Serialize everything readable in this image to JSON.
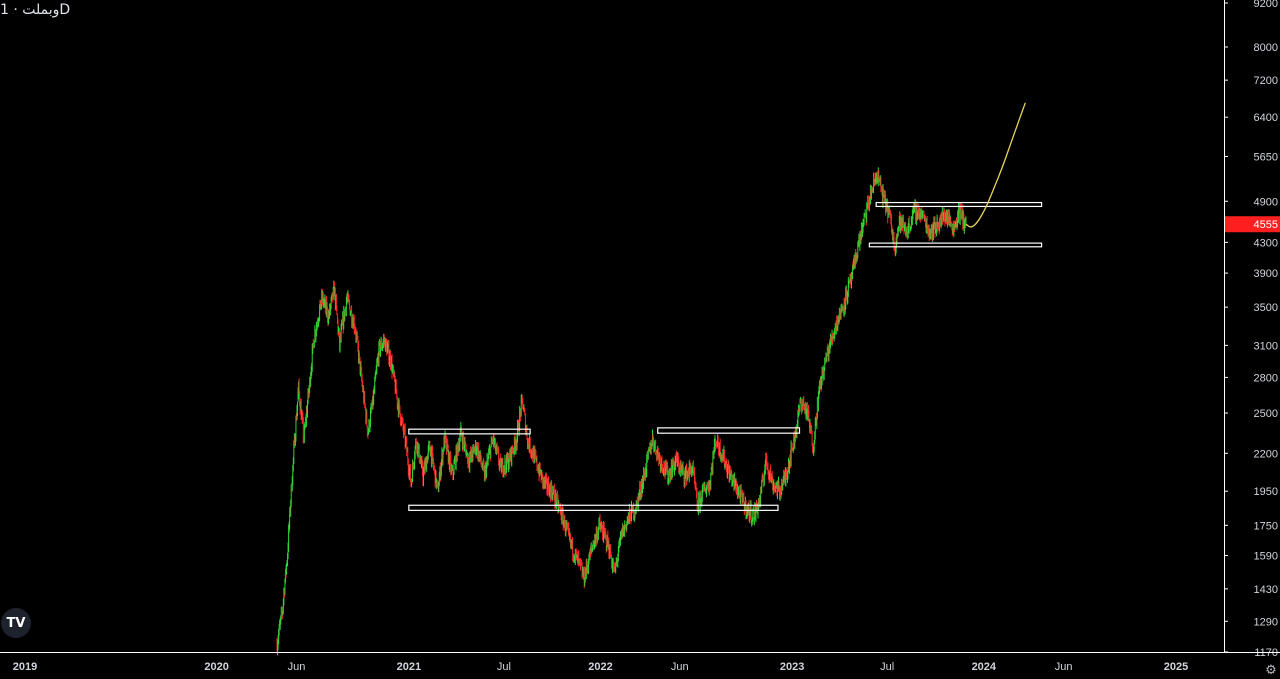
{
  "title": "وبملت · 1D",
  "logo_text": "TV",
  "settings_icon": "gear-icon",
  "chart_data": {
    "type": "candlestick",
    "symbol": "وبملت",
    "interval": "1D",
    "y_scale": "log",
    "ylim": [
      1170,
      9200
    ],
    "y_ticks": [
      1170,
      1290,
      1430,
      1590,
      1750,
      1950,
      2200,
      2500,
      2800,
      3100,
      3500,
      3900,
      4300,
      4900,
      5650,
      6400,
      7200,
      8000,
      9200
    ],
    "y_tick_labels": [
      "1170",
      "1290",
      "1430",
      "1590",
      "1750",
      "1950",
      "2200",
      "2500",
      "2800",
      "3100",
      "3500",
      "3900",
      "4300",
      "4900",
      "5650",
      "6400",
      "7200",
      "8000",
      "9200"
    ],
    "x_ticks": [
      {
        "label": "2019",
        "date": "2019-01-01",
        "bold": true
      },
      {
        "label": "2020",
        "date": "2020-01-01",
        "bold": true
      },
      {
        "label": "Jun",
        "date": "2020-06-01",
        "bold": false
      },
      {
        "label": "2021",
        "date": "2021-01-01",
        "bold": true
      },
      {
        "label": "Jul",
        "date": "2021-07-01",
        "bold": false
      },
      {
        "label": "2022",
        "date": "2022-01-01",
        "bold": true
      },
      {
        "label": "Jun",
        "date": "2022-06-01",
        "bold": false
      },
      {
        "label": "2023",
        "date": "2023-01-01",
        "bold": true
      },
      {
        "label": "Jul",
        "date": "2023-07-01",
        "bold": false
      },
      {
        "label": "2024",
        "date": "2024-01-01",
        "bold": true
      },
      {
        "label": "Jun",
        "date": "2024-06-01",
        "bold": false
      },
      {
        "label": "2025",
        "date": "2025-01-01",
        "bold": true
      }
    ],
    "last_price": 4555,
    "last_price_label": "4555",
    "colors": {
      "up": "#33d633",
      "down": "#ff2a2a",
      "last_price_bg": "#ff1f1f",
      "projection": "#e8d35a",
      "zones": "#ffffff",
      "background": "#000000",
      "text": "#d1d4dc"
    },
    "price_path": [
      [
        "2020-04-25",
        1200
      ],
      [
        "2020-05-05",
        1330
      ],
      [
        "2020-05-15",
        1600
      ],
      [
        "2020-05-25",
        2100
      ],
      [
        "2020-06-05",
        2700
      ],
      [
        "2020-06-15",
        2300
      ],
      [
        "2020-06-25",
        2700
      ],
      [
        "2020-07-05",
        3200
      ],
      [
        "2020-07-20",
        3600
      ],
      [
        "2020-08-01",
        3400
      ],
      [
        "2020-08-12",
        3700
      ],
      [
        "2020-08-22",
        3100
      ],
      [
        "2020-09-05",
        3600
      ],
      [
        "2020-09-20",
        3300
      ],
      [
        "2020-10-05",
        2700
      ],
      [
        "2020-10-15",
        2350
      ],
      [
        "2020-10-25",
        2600
      ],
      [
        "2020-11-05",
        3050
      ],
      [
        "2020-11-15",
        3150
      ],
      [
        "2020-11-28",
        2950
      ],
      [
        "2020-12-10",
        2600
      ],
      [
        "2020-12-25",
        2300
      ],
      [
        "2021-01-05",
        2000
      ],
      [
        "2021-01-15",
        2300
      ],
      [
        "2021-01-28",
        2050
      ],
      [
        "2021-02-10",
        2250
      ],
      [
        "2021-02-25",
        1950
      ],
      [
        "2021-03-10",
        2300
      ],
      [
        "2021-03-25",
        2050
      ],
      [
        "2021-04-10",
        2350
      ],
      [
        "2021-04-25",
        2150
      ],
      [
        "2021-05-10",
        2250
      ],
      [
        "2021-05-25",
        2050
      ],
      [
        "2021-06-10",
        2300
      ],
      [
        "2021-06-25",
        2100
      ],
      [
        "2021-07-10",
        2150
      ],
      [
        "2021-07-25",
        2300
      ],
      [
        "2021-08-05",
        2600
      ],
      [
        "2021-08-15",
        2300
      ],
      [
        "2021-08-30",
        2150
      ],
      [
        "2021-09-15",
        2000
      ],
      [
        "2021-10-01",
        1950
      ],
      [
        "2021-10-20",
        1800
      ],
      [
        "2021-11-05",
        1650
      ],
      [
        "2021-11-20",
        1550
      ],
      [
        "2021-12-01",
        1480
      ],
      [
        "2021-12-15",
        1620
      ],
      [
        "2021-12-30",
        1750
      ],
      [
        "2022-01-15",
        1650
      ],
      [
        "2022-01-28",
        1500
      ],
      [
        "2022-02-10",
        1700
      ],
      [
        "2022-02-25",
        1800
      ],
      [
        "2022-03-10",
        1850
      ],
      [
        "2022-03-25",
        2050
      ],
      [
        "2022-04-10",
        2300
      ],
      [
        "2022-04-25",
        2150
      ],
      [
        "2022-05-10",
        2050
      ],
      [
        "2022-05-25",
        2150
      ],
      [
        "2022-06-10",
        2050
      ],
      [
        "2022-06-25",
        2100
      ],
      [
        "2022-07-05",
        1850
      ],
      [
        "2022-07-15",
        1950
      ],
      [
        "2022-07-28",
        2000
      ],
      [
        "2022-08-08",
        2300
      ],
      [
        "2022-08-20",
        2200
      ],
      [
        "2022-09-05",
        2050
      ],
      [
        "2022-09-20",
        1950
      ],
      [
        "2022-10-05",
        1850
      ],
      [
        "2022-10-20",
        1800
      ],
      [
        "2022-11-01",
        1900
      ],
      [
        "2022-11-12",
        2150
      ],
      [
        "2022-11-25",
        2000
      ],
      [
        "2022-12-08",
        1950
      ],
      [
        "2022-12-20",
        2050
      ],
      [
        "2023-01-05",
        2300
      ],
      [
        "2023-01-18",
        2600
      ],
      [
        "2023-01-30",
        2500
      ],
      [
        "2023-02-10",
        2250
      ],
      [
        "2023-02-22",
        2700
      ],
      [
        "2023-03-08",
        3000
      ],
      [
        "2023-03-25",
        3300
      ],
      [
        "2023-04-10",
        3550
      ],
      [
        "2023-04-25",
        3850
      ],
      [
        "2023-05-08",
        4300
      ],
      [
        "2023-05-20",
        4650
      ],
      [
        "2023-06-01",
        5050
      ],
      [
        "2023-06-12",
        5350
      ],
      [
        "2023-06-22",
        5000
      ],
      [
        "2023-07-05",
        4700
      ],
      [
        "2023-07-15",
        4250
      ],
      [
        "2023-07-25",
        4600
      ],
      [
        "2023-08-08",
        4450
      ],
      [
        "2023-08-22",
        4750
      ],
      [
        "2023-09-05",
        4700
      ],
      [
        "2023-09-20",
        4450
      ],
      [
        "2023-10-05",
        4550
      ],
      [
        "2023-10-20",
        4700
      ],
      [
        "2023-11-05",
        4500
      ],
      [
        "2023-11-15",
        4750
      ],
      [
        "2023-11-28",
        4555
      ]
    ],
    "zones": [
      {
        "start": "2021-01-01",
        "end": "2021-08-20",
        "low": 2340,
        "high": 2375
      },
      {
        "start": "2021-01-01",
        "end": "2022-12-05",
        "low": 1835,
        "high": 1865
      },
      {
        "start": "2022-04-20",
        "end": "2023-01-15",
        "low": 2345,
        "high": 2385
      },
      {
        "start": "2023-06-10",
        "end": "2024-04-20",
        "low": 4820,
        "high": 4880
      },
      {
        "start": "2023-05-28",
        "end": "2024-04-20",
        "low": 4240,
        "high": 4290
      }
    ],
    "projection": [
      [
        "2023-11-28",
        4555
      ],
      [
        "2023-12-08",
        4500
      ],
      [
        "2023-12-20",
        4580
      ],
      [
        "2024-01-05",
        4800
      ],
      [
        "2024-01-20",
        5100
      ],
      [
        "2024-02-05",
        5450
      ],
      [
        "2024-02-20",
        5850
      ],
      [
        "2024-03-05",
        6250
      ],
      [
        "2024-03-20",
        6700
      ]
    ]
  }
}
